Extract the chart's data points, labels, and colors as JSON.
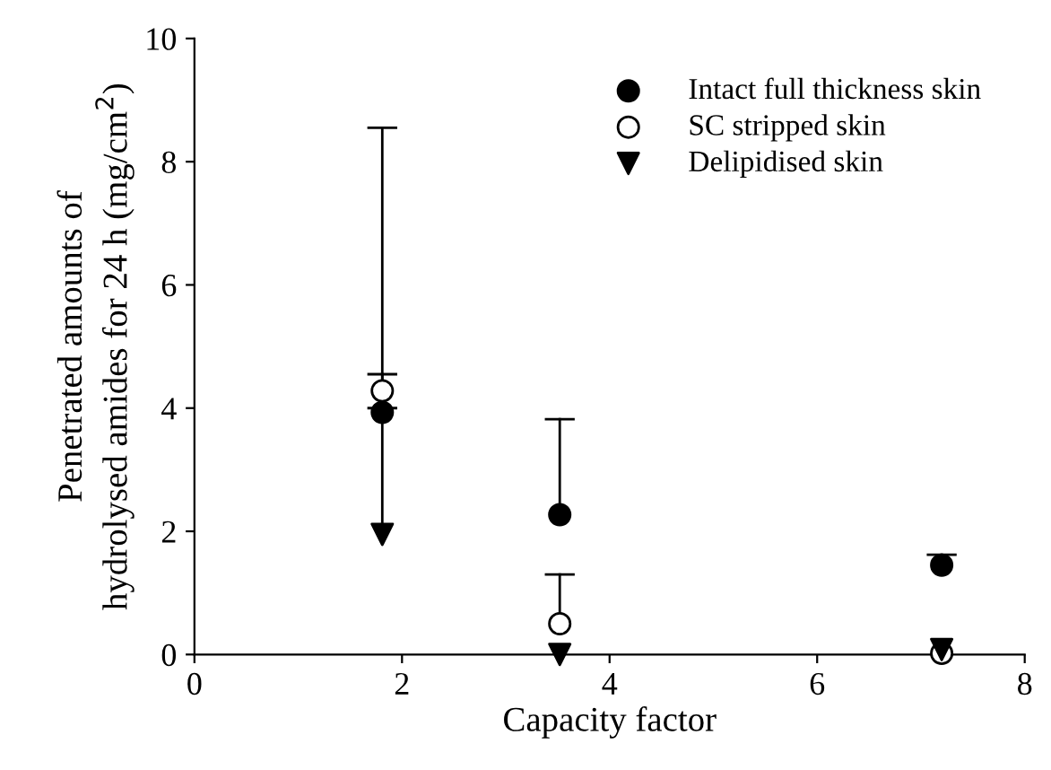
{
  "chart_data": {
    "type": "scatter",
    "xlabel": "Capacity factor",
    "ylabel": "Penetrated amounts of\nhydrolysed amides for 24 h (mg/cm$^{2}$)",
    "xlim": [
      0,
      8
    ],
    "xticks": [
      0,
      2,
      4,
      6,
      8
    ],
    "ylim": [
      0,
      10
    ],
    "yticks": [
      0,
      2,
      4,
      6,
      8,
      10
    ],
    "grid": false,
    "legend": "top right",
    "series": [
      {
        "name": "Intact full thickness skin",
        "color": "#000000",
        "marker": "circle",
        "x": [
          1.81,
          3.52,
          7.2
        ],
        "values": [
          3.93,
          2.27,
          1.45
        ],
        "errors": [
          [
            3.93,
            8.55
          ],
          [
            2.27,
            3.82
          ],
          [
            1.45,
            1.62
          ]
        ]
      },
      {
        "name": "SC stripped skin",
        "color": "#000000",
        "marker": "circle",
        "x": [
          1.81,
          3.52,
          7.2
        ],
        "values": [
          4.28,
          0.5,
          0.02
        ],
        "errors": [
          [
            4.28,
            4.55
          ],
          [
            0.5,
            1.3
          ],
          null
        ]
      },
      {
        "name": "Delipidised skin",
        "color": "#000000",
        "marker": "triangle",
        "x": [
          1.81,
          3.52,
          7.2
        ],
        "values": [
          1.95,
          0.0,
          0.08
        ],
        "errors": [
          [
            1.95,
            4.0
          ],
          null,
          null
        ]
      }
    ]
  }
}
